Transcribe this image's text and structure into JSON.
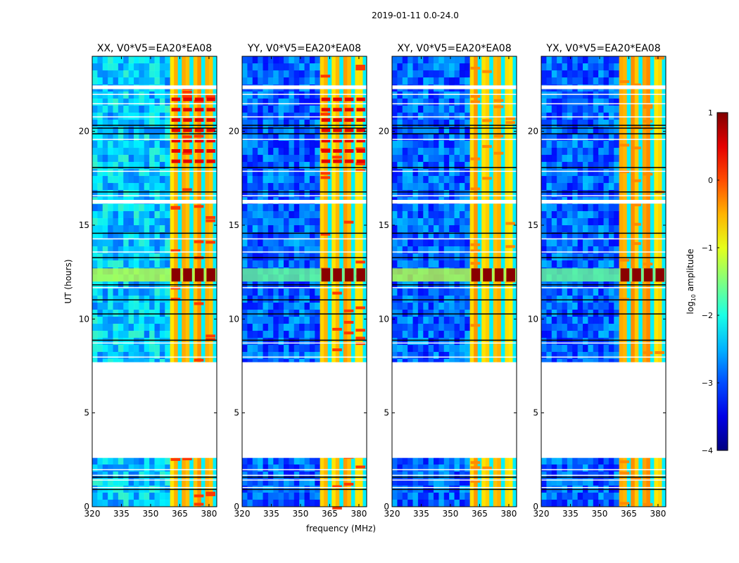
{
  "figure": {
    "suptitle": "2019-01-11 0.0-24.0",
    "shared_xlabel": "frequency (MHz)",
    "shared_ylabel": "UT (hours)"
  },
  "colorbar": {
    "label": "log10 amplitude",
    "label_base": "log",
    "label_sub": "10",
    "label_rest": " amplitude",
    "range": [
      -4,
      1
    ],
    "ticks": [
      "1",
      "0",
      "−1",
      "−2",
      "−3",
      "−4"
    ],
    "tick_values": [
      1,
      0,
      -1,
      -2,
      -3,
      -4
    ],
    "colormap": "jet"
  },
  "chart_data": [
    {
      "type": "heatmap",
      "title": "XX, V0*V5=EA20*EA08",
      "xlabel": "",
      "ylabel": "UT (hours)",
      "xlim": [
        320,
        384
      ],
      "ylim": [
        0,
        24
      ],
      "xticks": [
        320,
        335,
        350,
        365,
        380
      ],
      "yticks": [
        0,
        5,
        10,
        15,
        20
      ],
      "rfi_band_mhz": [
        360,
        384
      ],
      "no_data_ut_hours": [
        2.6,
        7.7
      ]
    },
    {
      "type": "heatmap",
      "title": "YY, V0*V5=EA20*EA08",
      "xlabel": "frequency (MHz)",
      "ylabel": "",
      "xlim": [
        320,
        384
      ],
      "ylim": [
        0,
        24
      ],
      "xticks": [
        320,
        335,
        350,
        365,
        380
      ],
      "yticks": [
        0,
        5,
        10,
        15,
        20
      ],
      "rfi_band_mhz": [
        360,
        384
      ],
      "no_data_ut_hours": [
        2.6,
        7.7
      ]
    },
    {
      "type": "heatmap",
      "title": "XY, V0*V5=EA20*EA08",
      "xlabel": "",
      "ylabel": "",
      "xlim": [
        320,
        384
      ],
      "ylim": [
        0,
        24
      ],
      "xticks": [
        320,
        335,
        350,
        365,
        380
      ],
      "yticks": [
        0,
        5,
        10,
        15,
        20
      ],
      "rfi_band_mhz": [
        360,
        384
      ],
      "no_data_ut_hours": [
        2.6,
        7.7
      ]
    },
    {
      "type": "heatmap",
      "title": "YX, V0*V5=EA20*EA08",
      "xlabel": "",
      "ylabel": "",
      "xlim": [
        320,
        384
      ],
      "ylim": [
        0,
        24
      ],
      "xticks": [
        320,
        335,
        350,
        365,
        380
      ],
      "yticks": [
        0,
        5,
        10,
        15,
        20
      ],
      "rfi_band_mhz": [
        360,
        384
      ],
      "no_data_ut_hours": [
        2.6,
        7.7
      ]
    }
  ]
}
